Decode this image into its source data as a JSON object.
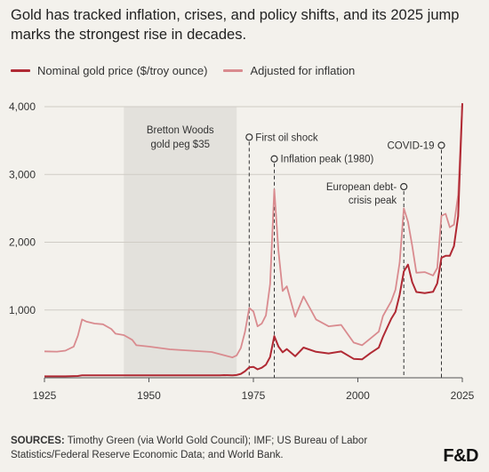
{
  "title": "Gold has tracked inflation, crises, and policy shifts, and its 2025 jump marks the strongest rise in decades.",
  "legend": [
    {
      "label": "Nominal gold price ($/troy ounce)",
      "color": "#b02a34"
    },
    {
      "label": "Adjusted for inflation",
      "color": "#d98b8f"
    }
  ],
  "sources_label": "SOURCES:",
  "sources_text": "Timothy Green (via World Gold Council); IMF; US Bureau of Labor Statistics/Federal Reserve Economic Data; and World Bank.",
  "logo": "F&D",
  "chart_data": {
    "type": "line",
    "xlim": [
      1925,
      2025
    ],
    "ylim": [
      0,
      4000
    ],
    "x_ticks": [
      1925,
      1950,
      1975,
      2000,
      2025
    ],
    "y_ticks": [
      1000,
      2000,
      3000,
      4000
    ],
    "y_tick_labels": [
      "1,000",
      "2,000",
      "3,000",
      "4,000"
    ],
    "grid": true,
    "shaded_region": {
      "x": [
        1944,
        1971
      ],
      "label": "Bretton Woods gold peg $35"
    },
    "annotations": [
      {
        "x": 1974,
        "y_label": 3550,
        "label": "First oil shock",
        "side": "right"
      },
      {
        "x": 1980,
        "y_label": 3230,
        "label": "Inflation peak (1980)",
        "side": "right"
      },
      {
        "x": 2011,
        "y_label": 2820,
        "label": "European debt-crisis peak",
        "side": "left"
      },
      {
        "x": 2020,
        "y_label": 3430,
        "label": "COVID-19",
        "side": "left"
      }
    ],
    "series": [
      {
        "name": "Nominal gold price ($/troy ounce)",
        "color": "#b02a34",
        "x": [
          1925,
          1930,
          1933,
          1934,
          1940,
          1944,
          1950,
          1960,
          1967,
          1968,
          1970,
          1971,
          1972,
          1973,
          1974,
          1975,
          1976,
          1977,
          1978,
          1979,
          1980,
          1981,
          1982,
          1983,
          1985,
          1987,
          1990,
          1993,
          1996,
          1999,
          2001,
          2003,
          2005,
          2006,
          2008,
          2009,
          2010,
          2011,
          2012,
          2013,
          2014,
          2016,
          2018,
          2019,
          2020,
          2021,
          2022,
          2023,
          2024,
          2025
        ],
        "values": [
          21,
          21,
          26,
          35,
          35,
          35,
          35,
          35,
          35,
          39,
          36,
          41,
          58,
          97,
          154,
          161,
          125,
          148,
          193,
          307,
          615,
          460,
          376,
          424,
          317,
          446,
          383,
          360,
          388,
          279,
          271,
          363,
          444,
          603,
          872,
          972,
          1225,
          1570,
          1669,
          1411,
          1266,
          1250,
          1268,
          1393,
          1770,
          1799,
          1800,
          1943,
          2386,
          4050
        ]
      },
      {
        "name": "Adjusted for inflation",
        "color": "#d98b8f",
        "x": [
          1925,
          1928,
          1930,
          1932,
          1933,
          1934,
          1935,
          1937,
          1939,
          1941,
          1942,
          1944,
          1946,
          1947,
          1950,
          1955,
          1960,
          1965,
          1970,
          1971,
          1972,
          1973,
          1974,
          1975,
          1976,
          1977,
          1978,
          1979,
          1980,
          1981,
          1982,
          1983,
          1985,
          1987,
          1990,
          1993,
          1996,
          1999,
          2001,
          2003,
          2005,
          2006,
          2008,
          2009,
          2010,
          2011,
          2012,
          2013,
          2014,
          2016,
          2018,
          2019,
          2020,
          2021,
          2022,
          2023,
          2024,
          2025
        ],
        "values": [
          390,
          385,
          400,
          460,
          620,
          860,
          830,
          800,
          790,
          720,
          650,
          630,
          560,
          480,
          460,
          420,
          400,
          380,
          300,
          330,
          440,
          680,
          1030,
          980,
          760,
          800,
          920,
          1380,
          2780,
          1870,
          1280,
          1350,
          900,
          1200,
          860,
          760,
          780,
          520,
          480,
          580,
          680,
          910,
          1130,
          1300,
          1700,
          2500,
          2300,
          1950,
          1550,
          1560,
          1510,
          1620,
          2390,
          2420,
          2220,
          2260,
          2700,
          4050
        ]
      }
    ]
  }
}
